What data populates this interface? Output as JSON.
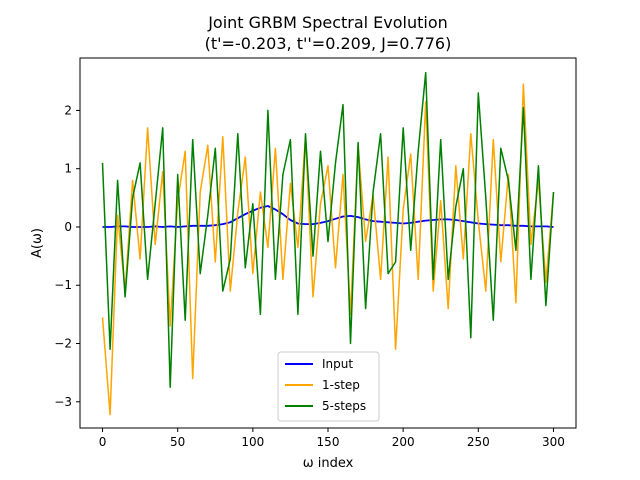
{
  "chart_data": {
    "type": "line",
    "title": "Joint GRBM Spectral Evolution",
    "subtitle": "(t'=-0.203, t''=0.209, J=0.776)",
    "xlabel": "ω index",
    "ylabel": "A(ω)",
    "xlim": [
      -15,
      315
    ],
    "ylim": [
      -3.45,
      2.9
    ],
    "xticks": [
      0,
      50,
      100,
      150,
      200,
      250,
      300
    ],
    "yticks": [
      -3,
      -2,
      -1,
      0,
      1,
      2
    ],
    "grid": false,
    "legend_placement": "lower-center",
    "colors": {
      "Input": "#0000ff",
      "1-step": "#ffa500",
      "5-steps": "#008000"
    },
    "x": [
      0,
      5,
      10,
      15,
      20,
      25,
      30,
      35,
      40,
      45,
      50,
      55,
      60,
      65,
      70,
      75,
      80,
      85,
      90,
      95,
      100,
      105,
      110,
      115,
      120,
      125,
      130,
      135,
      140,
      145,
      150,
      155,
      160,
      165,
      170,
      175,
      180,
      185,
      190,
      195,
      200,
      205,
      210,
      215,
      220,
      225,
      230,
      235,
      240,
      245,
      250,
      255,
      260,
      265,
      270,
      275,
      280,
      285,
      290,
      295,
      300
    ],
    "series": [
      {
        "name": "Input",
        "values": [
          0.0,
          0.0,
          0.01,
          0.01,
          0.0,
          0.0,
          0.0,
          0.01,
          0.0,
          0.01,
          0.0,
          0.01,
          0.02,
          0.02,
          0.02,
          0.03,
          0.05,
          0.08,
          0.15,
          0.22,
          0.28,
          0.33,
          0.36,
          0.3,
          0.22,
          0.12,
          0.06,
          0.05,
          0.05,
          0.07,
          0.1,
          0.14,
          0.18,
          0.19,
          0.17,
          0.13,
          0.1,
          0.09,
          0.08,
          0.07,
          0.06,
          0.07,
          0.09,
          0.11,
          0.12,
          0.13,
          0.13,
          0.12,
          0.1,
          0.08,
          0.06,
          0.05,
          0.04,
          0.03,
          0.03,
          0.02,
          0.02,
          0.01,
          0.01,
          0.01,
          0.0
        ]
      },
      {
        "name": "1-step",
        "values": [
          -1.55,
          -3.22,
          0.2,
          -1.1,
          0.8,
          -0.55,
          1.7,
          -0.3,
          0.95,
          -1.7,
          0.45,
          1.3,
          -2.6,
          0.6,
          1.4,
          -0.6,
          1.55,
          -1.1,
          0.25,
          1.2,
          -0.8,
          0.6,
          -0.35,
          1.35,
          -0.9,
          0.75,
          -0.35,
          1.55,
          -1.2,
          0.4,
          1.05,
          -0.7,
          0.9,
          -1.5,
          1.4,
          -0.25,
          0.55,
          -0.9,
          1.2,
          -2.1,
          0.3,
          1.25,
          -0.9,
          2.15,
          -1.1,
          0.45,
          -1.4,
          1.05,
          -0.55,
          1.6,
          0.1,
          -1.1,
          1.5,
          -0.6,
          0.9,
          -1.3,
          2.45,
          -0.3,
          0.8,
          -0.95,
          0.6
        ]
      },
      {
        "name": "5-steps",
        "values": [
          1.1,
          -2.1,
          0.8,
          -1.2,
          0.5,
          1.1,
          -0.9,
          0.4,
          1.7,
          -2.75,
          0.9,
          -1.6,
          1.5,
          -0.8,
          0.2,
          1.35,
          -1.1,
          -0.55,
          1.6,
          -0.7,
          0.4,
          -1.5,
          2.0,
          -0.9,
          0.9,
          1.5,
          -1.5,
          1.6,
          -0.5,
          1.3,
          -0.25,
          1.1,
          2.1,
          -2.0,
          1.45,
          -1.4,
          0.6,
          1.6,
          -0.8,
          -0.6,
          1.7,
          -0.4,
          1.3,
          2.65,
          -0.9,
          1.5,
          -0.9,
          0.35,
          1.0,
          -1.9,
          2.3,
          0.5,
          -1.6,
          1.35,
          0.8,
          -0.4,
          2.05,
          -0.9,
          1.05,
          -1.35,
          0.6
        ]
      }
    ]
  }
}
